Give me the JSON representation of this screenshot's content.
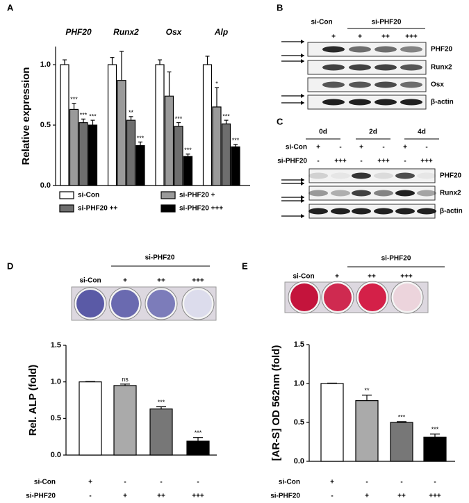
{
  "panel_labels": [
    "A",
    "B",
    "C",
    "D",
    "E"
  ],
  "chart_data": [
    {
      "type": "grouped-bar",
      "y_label": "Relative expression",
      "categories": [
        "PHF20",
        "Runx2",
        "Osx",
        "Alp"
      ],
      "ylim": [
        0,
        1.15
      ],
      "yticks": [
        {
          "value": 0,
          "label": "0.0"
        },
        0.5,
        {
          "value": 1,
          "label": "1.0"
        }
      ],
      "series": [
        {
          "name": "si-Con",
          "color": "#ffffff",
          "values": [
            1.0,
            1.0,
            1.0,
            1.0
          ],
          "errors": [
            0.04,
            0.06,
            0.04,
            0.07
          ],
          "significance": [
            null,
            null,
            null,
            null
          ]
        },
        {
          "name": "si-PHF20 +",
          "color": "#9a9a9a",
          "values": [
            0.63,
            0.87,
            0.74,
            0.65
          ],
          "errors": [
            0.05,
            0.24,
            0.2,
            0.16
          ],
          "significance": [
            "***",
            null,
            null,
            "*"
          ]
        },
        {
          "name": "si-PHF20 ++",
          "color": "#6e6e6e",
          "values": [
            0.52,
            0.54,
            0.49,
            0.51
          ],
          "errors": [
            0.03,
            0.03,
            0.03,
            0.03
          ],
          "significance": [
            "***",
            "**",
            "***",
            "***"
          ]
        },
        {
          "name": "si-PHF20 +++",
          "color": "#000000",
          "values": [
            0.5,
            0.33,
            0.24,
            0.32
          ],
          "errors": [
            0.04,
            0.03,
            0.02,
            0.02
          ],
          "significance": [
            "***",
            "***",
            "***",
            "***"
          ]
        }
      ]
    },
    {
      "type": "bar",
      "y_label": "Rel. ALP (fold)",
      "values": [
        1.0,
        0.95,
        0.63,
        0.19
      ],
      "errors": [
        0.005,
        0.02,
        0.03,
        0.05
      ],
      "colors": [
        "#ffffff",
        "#aaaaaa",
        "#777777",
        "#000000"
      ],
      "significance": [
        null,
        "ns",
        "***",
        "***"
      ],
      "ylim": [
        0,
        1.5
      ],
      "yticks": [
        {
          "value": 0,
          "label": "0.0"
        },
        0.5,
        {
          "value": 1,
          "label": "1.0"
        },
        1.5
      ],
      "treatment_rows": [
        {
          "label": "si-Con",
          "marks": [
            "+",
            "-",
            "-",
            "-"
          ]
        },
        {
          "label": "si-PHF20",
          "marks": [
            "-",
            "+",
            "++",
            "+++"
          ]
        }
      ]
    },
    {
      "type": "bar",
      "y_label": "[AR-S] OD 562nm (fold)",
      "values": [
        1.0,
        0.78,
        0.5,
        0.31
      ],
      "errors": [
        0.005,
        0.07,
        0.01,
        0.04
      ],
      "colors": [
        "#ffffff",
        "#aaaaaa",
        "#777777",
        "#000000"
      ],
      "significance": [
        null,
        "**",
        "***",
        "***"
      ],
      "ylim": [
        0,
        1.5
      ],
      "yticks": [
        {
          "value": 0,
          "label": "0.0"
        },
        0.5,
        {
          "value": 1,
          "label": "1.0"
        },
        1.5
      ],
      "treatment_rows": [
        {
          "label": "si-Con",
          "marks": [
            "+",
            "-",
            "-",
            "-"
          ]
        },
        {
          "label": "si-PHF20",
          "marks": [
            "-",
            "+",
            "++",
            "+++"
          ]
        }
      ]
    }
  ],
  "blot_b": {
    "header": [
      "si-Con",
      "si-PHF20"
    ],
    "lanes": [
      "+",
      "+",
      "++",
      "+++"
    ],
    "bands": [
      "PHF20",
      "Runx2",
      "Osx",
      "β-actin"
    ]
  },
  "blot_c": {
    "timepoints": [
      "0d",
      "2d",
      "4d"
    ],
    "rows": [
      {
        "label": "si-Con",
        "marks": [
          "+",
          "-",
          "+",
          "-",
          "+",
          "-"
        ]
      },
      {
        "label": "si-PHF20",
        "marks": [
          "-",
          "+++",
          "-",
          "+++",
          "-",
          "+++"
        ]
      }
    ],
    "bands": [
      "PHF20",
      "Runx2",
      "β-actin"
    ]
  },
  "stain_d": {
    "group": "si-PHF20",
    "lanes": [
      "si-Con",
      "+",
      "++",
      "+++"
    ]
  },
  "stain_e": {
    "group": "si-PHF20",
    "lanes": [
      "si-Con",
      "+",
      "++",
      "+++"
    ]
  }
}
